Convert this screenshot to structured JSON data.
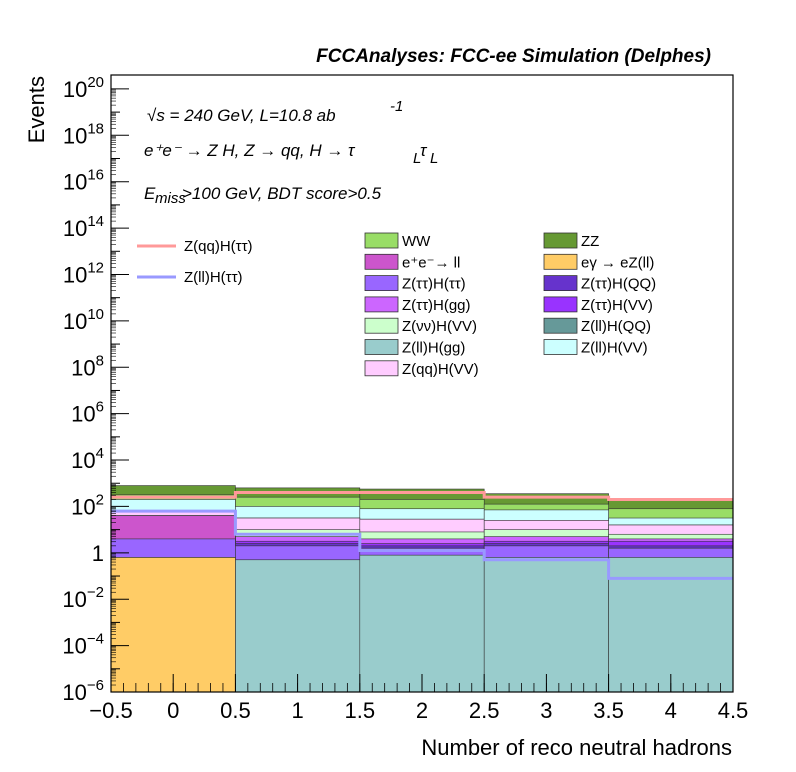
{
  "chart_data": {
    "type": "histogram-stacked",
    "title": "FCCAnalyses: FCC-ee Simulation (Delphes)",
    "xlabel": "Number of reco neutral hadrons",
    "ylabel": "Events",
    "xlim": [
      -0.5,
      4.5
    ],
    "ylim_log10": [
      -6,
      20.6
    ],
    "yscale": "log",
    "bin_edges": [
      -0.5,
      0.5,
      1.5,
      2.5,
      3.5,
      4.5
    ],
    "x_ticks": [
      "−0.5",
      "0",
      "0.5",
      "1",
      "1.5",
      "2",
      "2.5",
      "3",
      "3.5",
      "4",
      "4.5"
    ],
    "x_tick_values": [
      -0.5,
      0,
      0.5,
      1,
      1.5,
      2,
      2.5,
      3,
      3.5,
      4,
      4.5
    ],
    "y_ticks": [
      {
        "exp": -6,
        "base": "10",
        "sup": "−6"
      },
      {
        "exp": -4,
        "base": "10",
        "sup": "−4"
      },
      {
        "exp": -2,
        "base": "10",
        "sup": "−2"
      },
      {
        "exp": 0,
        "base": "1",
        "sup": ""
      },
      {
        "exp": 2,
        "base": "10",
        "sup": "2"
      },
      {
        "exp": 4,
        "base": "10",
        "sup": "4"
      },
      {
        "exp": 6,
        "base": "10",
        "sup": "6"
      },
      {
        "exp": 8,
        "base": "10",
        "sup": "8"
      },
      {
        "exp": 10,
        "base": "10",
        "sup": "10"
      },
      {
        "exp": 12,
        "base": "10",
        "sup": "12"
      },
      {
        "exp": 14,
        "base": "10",
        "sup": "14"
      },
      {
        "exp": 16,
        "base": "10",
        "sup": "16"
      },
      {
        "exp": 18,
        "base": "10",
        "sup": "18"
      },
      {
        "exp": 20,
        "base": "10",
        "sup": "20"
      }
    ],
    "annotations": {
      "energy_line": "√s = 240 GeV, L=10.8 ab",
      "energy_sup": "-1",
      "process_line": "e⁺e⁻ → Z H, Z → qq, H → τ",
      "process_sub_L": "L",
      "process_tau": "τ",
      "cut_E": "E",
      "cut_sub": "miss",
      "cut_rest": ">100 GeV, BDT score>0.5"
    },
    "stack_order_bottom_to_top": [
      "eγ → eZ(ll)",
      "Z(ll)H(gg)",
      "Z(ττ)H(ττ)",
      "e⁺e⁻→ ll",
      "Z(ττ)H(QQ)",
      "Z(ττ)H(VV)",
      "Z(ττ)H(gg)",
      "Z(νν)H(VV)",
      "Z(qq)H(VV)",
      "Z(ll)H(QQ)",
      "Z(ll)H(VV)",
      "WW",
      "ZZ"
    ],
    "stack_cumulative_log10": [
      {
        "name": "eγ → eZ(ll)",
        "values": [
          -0.2,
          -9,
          -9,
          -9,
          -9
        ]
      },
      {
        "name": "Z(ll)H(gg)",
        "values": [
          -0.2,
          -0.3,
          -0.1,
          -0.2,
          -0.2
        ]
      },
      {
        "name": "Z(ττ)H(ττ)",
        "values": [
          0.6,
          0.3,
          0.2,
          0.3,
          0.2
        ]
      },
      {
        "name": "e⁺e⁻→ ll",
        "values": [
          1.6,
          0.3,
          0.2,
          0.3,
          0.2
        ]
      },
      {
        "name": "Z(ττ)H(QQ)",
        "values": [
          1.6,
          0.4,
          0.3,
          0.4,
          0.3
        ]
      },
      {
        "name": "Z(ττ)H(VV)",
        "values": [
          1.6,
          0.5,
          0.4,
          0.5,
          0.5
        ]
      },
      {
        "name": "Z(ττ)H(gg)",
        "values": [
          1.6,
          0.7,
          0.6,
          0.7,
          0.6
        ]
      },
      {
        "name": "Z(νν)H(VV)",
        "values": [
          1.6,
          1.0,
          0.9,
          1.0,
          0.8
        ]
      },
      {
        "name": "Z(qq)H(VV)",
        "values": [
          1.8,
          1.5,
          1.45,
          1.4,
          1.2
        ]
      },
      {
        "name": "Z(ll)H(QQ)",
        "values": [
          1.8,
          1.5,
          1.45,
          1.4,
          1.2
        ]
      },
      {
        "name": "Z(ll)H(VV)",
        "values": [
          2.3,
          2.0,
          1.9,
          1.85,
          1.5
        ]
      },
      {
        "name": "WW",
        "values": [
          2.5,
          2.4,
          2.3,
          2.1,
          1.9
        ]
      },
      {
        "name": "ZZ",
        "values": [
          2.9,
          2.8,
          2.75,
          2.55,
          2.35
        ]
      }
    ],
    "signal_lines_log10": [
      {
        "name": "Z(qq)H(ττ)",
        "color": "#ff9999",
        "values": [
          2.4,
          2.6,
          2.6,
          2.4,
          2.3
        ]
      },
      {
        "name": "Z(ll)H(ττ)",
        "color": "#9999ff",
        "values": [
          1.8,
          0.8,
          0.1,
          -0.3,
          -1.1
        ]
      }
    ],
    "legend": {
      "lines": [
        {
          "label": "Z(qq)H(ττ)",
          "color": "#ff9999"
        },
        {
          "label": "Z(ll)H(ττ)",
          "color": "#9999ff"
        }
      ],
      "boxes": [
        {
          "label": "WW",
          "color": "#99dd66"
        },
        {
          "label": "ZZ",
          "color": "#669933"
        },
        {
          "label": "e⁺e⁻→ ll",
          "color": "#cc55cc"
        },
        {
          "label": "eγ → eZ(ll)",
          "color": "#ffcc66"
        },
        {
          "label": "Z(ττ)H(ττ)",
          "color": "#9966ff"
        },
        {
          "label": "Z(ττ)H(QQ)",
          "color": "#6633cc"
        },
        {
          "label": "Z(ττ)H(gg)",
          "color": "#cc66ff"
        },
        {
          "label": "Z(ττ)H(VV)",
          "color": "#9933ff"
        },
        {
          "label": "Z(νν)H(VV)",
          "color": "#ccffcc"
        },
        {
          "label": "Z(ll)H(QQ)",
          "color": "#669999"
        },
        {
          "label": "Z(ll)H(gg)",
          "color": "#99cccc"
        },
        {
          "label": "Z(ll)H(VV)",
          "color": "#ccffff"
        },
        {
          "label": "Z(qq)H(VV)",
          "color": "#ffccff"
        }
      ]
    }
  }
}
